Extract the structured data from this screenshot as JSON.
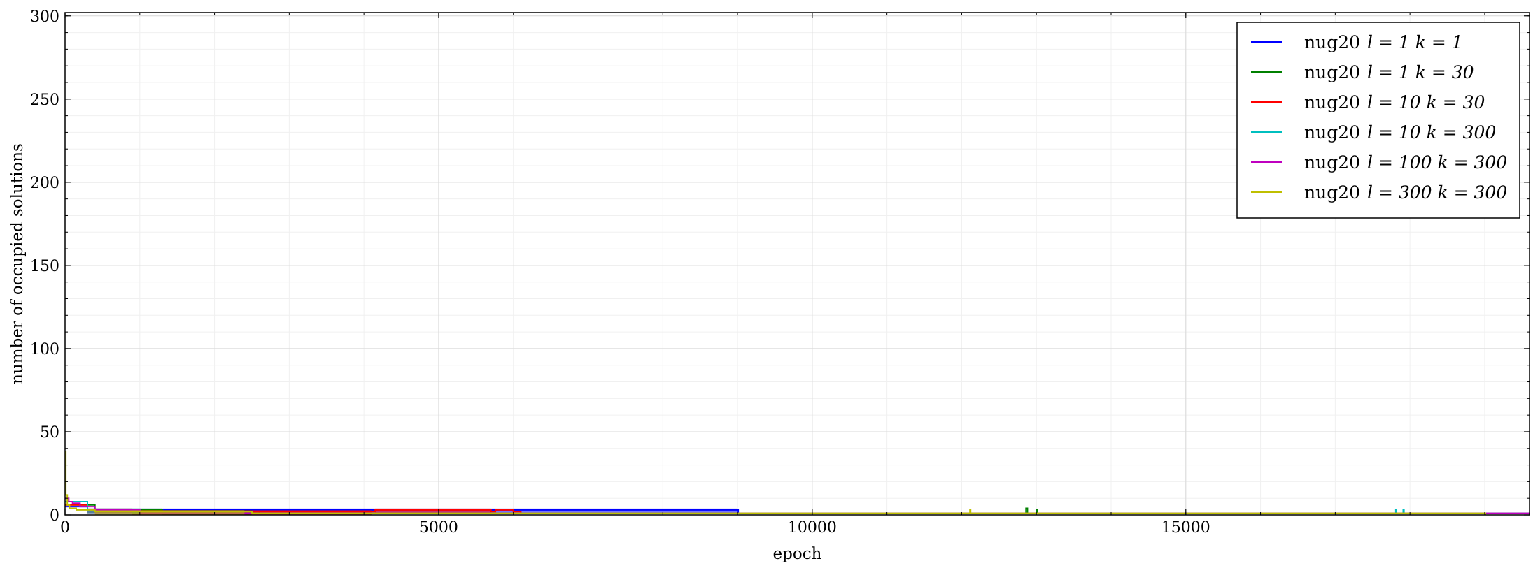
{
  "chart_data": {
    "type": "line",
    "xlabel": "epoch",
    "ylabel": "number of occupied solutions",
    "xlim": [
      0,
      19600
    ],
    "ylim": [
      0,
      302
    ],
    "x_ticks": [
      0,
      5000,
      10000,
      15000
    ],
    "x_tick_labels": [
      "0",
      "5000",
      "10000",
      "15000"
    ],
    "y_ticks": [
      0,
      50,
      100,
      150,
      200,
      250,
      300
    ],
    "y_tick_labels": [
      "0",
      "50",
      "100",
      "150",
      "200",
      "250",
      "300"
    ],
    "grid": true,
    "legend_position": "top-right",
    "series": [
      {
        "name": "nug20 l = 1 k = 1",
        "label_prefix": "nug20",
        "label_math": "l = 1 k = 1",
        "color": "#0000ff",
        "x": [
          0,
          300,
          1000,
          2000,
          3000,
          4000,
          5000,
          6000,
          7000,
          8000,
          9000,
          9010,
          19600
        ],
        "y": [
          5,
          3,
          3,
          3,
          3,
          3,
          3,
          3,
          3,
          3,
          3,
          1,
          1
        ]
      },
      {
        "name": "nug20 l = 1 k = 30",
        "label_prefix": "nug20",
        "label_math": "l = 1 k = 30",
        "color": "#008000",
        "x": [
          0,
          400,
          1300,
          2500,
          2600,
          12850,
          12860,
          12880,
          13000,
          13010,
          19600
        ],
        "y": [
          6,
          3,
          2,
          2,
          1,
          1,
          4,
          1,
          3,
          1,
          1
        ]
      },
      {
        "name": "nug20 l = 10 k = 30",
        "label_prefix": "nug20",
        "label_math": "l = 10 k = 30",
        "color": "#ff0000",
        "x": [
          0,
          300,
          900,
          4100,
          4150,
          5700,
          5760,
          6000,
          6100,
          19600
        ],
        "y": [
          6,
          3,
          2,
          2,
          3,
          2,
          3,
          2,
          1,
          1
        ]
      },
      {
        "name": "nug20 l = 10 k = 300",
        "label_prefix": "nug20",
        "label_math": "l = 10 k = 300",
        "color": "#00bfbf",
        "x": [
          0,
          300,
          1000,
          17800,
          17810,
          17820,
          17900,
          17910,
          17920,
          19600
        ],
        "y": [
          8,
          3,
          1,
          1,
          3,
          1,
          1,
          3,
          1,
          1
        ]
      },
      {
        "name": "nug20 l = 100 k = 300",
        "label_prefix": "nug20",
        "label_math": "l = 100 k = 300",
        "color": "#bf00bf",
        "x": [
          0,
          50,
          100,
          200,
          400,
          900,
          1000,
          19600
        ],
        "y": [
          10,
          8,
          7,
          5,
          3,
          3,
          1,
          1
        ]
      },
      {
        "name": "nug20 l = 300 k = 300",
        "label_prefix": "nug20",
        "label_math": "l = 300 k = 300",
        "color": "#bfbf00",
        "x": [
          0,
          10,
          30,
          60,
          150,
          400,
          1200,
          2400,
          2500,
          12100,
          12110,
          12120,
          19000,
          19010
        ],
        "y": [
          38,
          12,
          6,
          4,
          3,
          2,
          2,
          2,
          1,
          1,
          3,
          1,
          1,
          0
        ]
      }
    ]
  }
}
